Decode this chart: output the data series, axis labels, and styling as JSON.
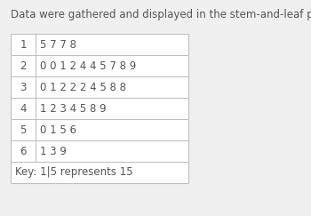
{
  "title": "Data were gathered and displayed in the stem-and-leaf plot.",
  "title_fontsize": 8.5,
  "background_color": "#f0f0f0",
  "table_bg": "#ffffff",
  "border_color": "#c0c0c0",
  "text_color": "#555555",
  "rows": [
    {
      "stem": "1",
      "leaves": "5 7 7 8"
    },
    {
      "stem": "2",
      "leaves": "0 0 1 2 4 4 5 7 8 9"
    },
    {
      "stem": "3",
      "leaves": "0 1 2 2 2 4 5 8 8"
    },
    {
      "stem": "4",
      "leaves": "1 2 3 4 5 8 9"
    },
    {
      "stem": "5",
      "leaves": "0 1 5 6"
    },
    {
      "stem": "6",
      "leaves": "1 3 9"
    }
  ],
  "key_text": "Key: 1|5 represents 15",
  "font_size": 8.5,
  "key_font_size": 8.5
}
